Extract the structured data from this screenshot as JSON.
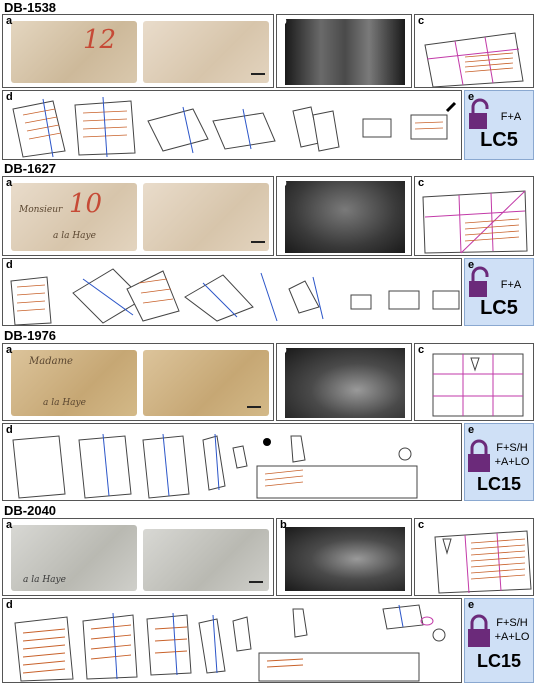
{
  "sections": [
    {
      "id": "DB-1538",
      "actions": "F+A",
      "code": "LC5"
    },
    {
      "id": "DB-1627",
      "actions": "F+A",
      "code": "LC5"
    },
    {
      "id": "DB-1976",
      "actions_line1": "F+S/H",
      "actions_line2": "+A+LO",
      "code": "LC15"
    },
    {
      "id": "DB-2040",
      "actions_line1": "F+S/H",
      "actions_line2": "+A+LO",
      "code": "LC15"
    }
  ],
  "panel_labels": {
    "a": "a",
    "b": "b",
    "c": "c",
    "d": "d",
    "e": "e"
  },
  "handwriting": {
    "s1_num": "12",
    "s2_num": "10",
    "s2_line1": "Monsieur",
    "s2_line2": "a la Haye",
    "s3_line1": "Madame",
    "s3_line2": "a la Haye",
    "s4_line1": "a la Haye"
  },
  "colors": {
    "lock": "#6b2a7a",
    "e_bg": "#cfe0f6",
    "text_lines": "#c8612a",
    "fold_blue": "#2b55c8",
    "crease_magenta": "#c23aa8"
  }
}
